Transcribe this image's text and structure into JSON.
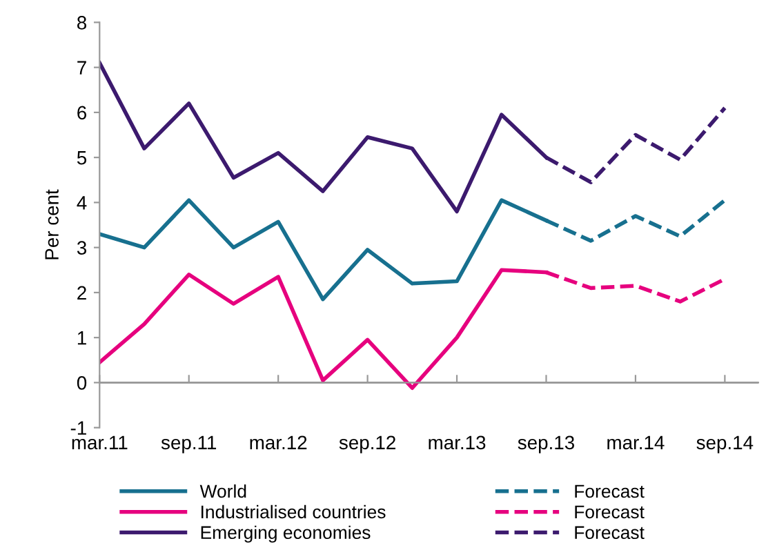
{
  "chart_data": {
    "type": "line",
    "ylabel": "Per cent",
    "categories": [
      "mar.11",
      null,
      "sep.11",
      null,
      "mar.12",
      null,
      "sep.12",
      null,
      "mar.13",
      null,
      "sep.13",
      null,
      "mar.14",
      null,
      "sep.14"
    ],
    "ylim": [
      -1,
      8
    ],
    "yticks": [
      -1,
      0,
      1,
      2,
      3,
      4,
      5,
      6,
      7,
      8
    ],
    "ref_lines": [
      {
        "axis": "y",
        "value": 0,
        "color": "#999999"
      }
    ],
    "legend": "bottom",
    "marker": "none",
    "series": [
      {
        "name": "World",
        "color": "#17708f",
        "line_style": "solid",
        "values": [
          3.3,
          3.0,
          4.05,
          3.0,
          3.57,
          1.85,
          2.95,
          2.2,
          2.25,
          4.05,
          3.6,
          null,
          null,
          null,
          null
        ]
      },
      {
        "name": "Industrialised countries",
        "color": "#e6007e",
        "line_style": "solid",
        "values": [
          0.45,
          1.3,
          2.4,
          1.75,
          2.35,
          0.05,
          0.95,
          -0.12,
          1.0,
          2.5,
          2.45,
          null,
          null,
          null,
          null
        ]
      },
      {
        "name": "Emerging economies",
        "color": "#3c1a6e",
        "line_style": "solid",
        "values": [
          7.1,
          5.2,
          6.2,
          4.55,
          5.1,
          4.25,
          5.45,
          5.2,
          3.8,
          5.95,
          5.0,
          null,
          null,
          null,
          null
        ]
      },
      {
        "name": "Forecast",
        "color": "#17708f",
        "line_style": "dashed",
        "values": [
          null,
          null,
          null,
          null,
          null,
          null,
          null,
          null,
          null,
          null,
          3.6,
          3.15,
          3.7,
          3.25,
          4.05
        ]
      },
      {
        "name": "Forecast",
        "color": "#e6007e",
        "line_style": "dashed",
        "values": [
          null,
          null,
          null,
          null,
          null,
          null,
          null,
          null,
          null,
          null,
          2.45,
          2.1,
          2.15,
          1.8,
          2.3
        ]
      },
      {
        "name": "Forecast",
        "color": "#3c1a6e",
        "line_style": "dashed",
        "values": [
          null,
          null,
          null,
          null,
          null,
          null,
          null,
          null,
          null,
          null,
          5.0,
          4.45,
          5.5,
          4.95,
          6.1
        ]
      }
    ]
  }
}
